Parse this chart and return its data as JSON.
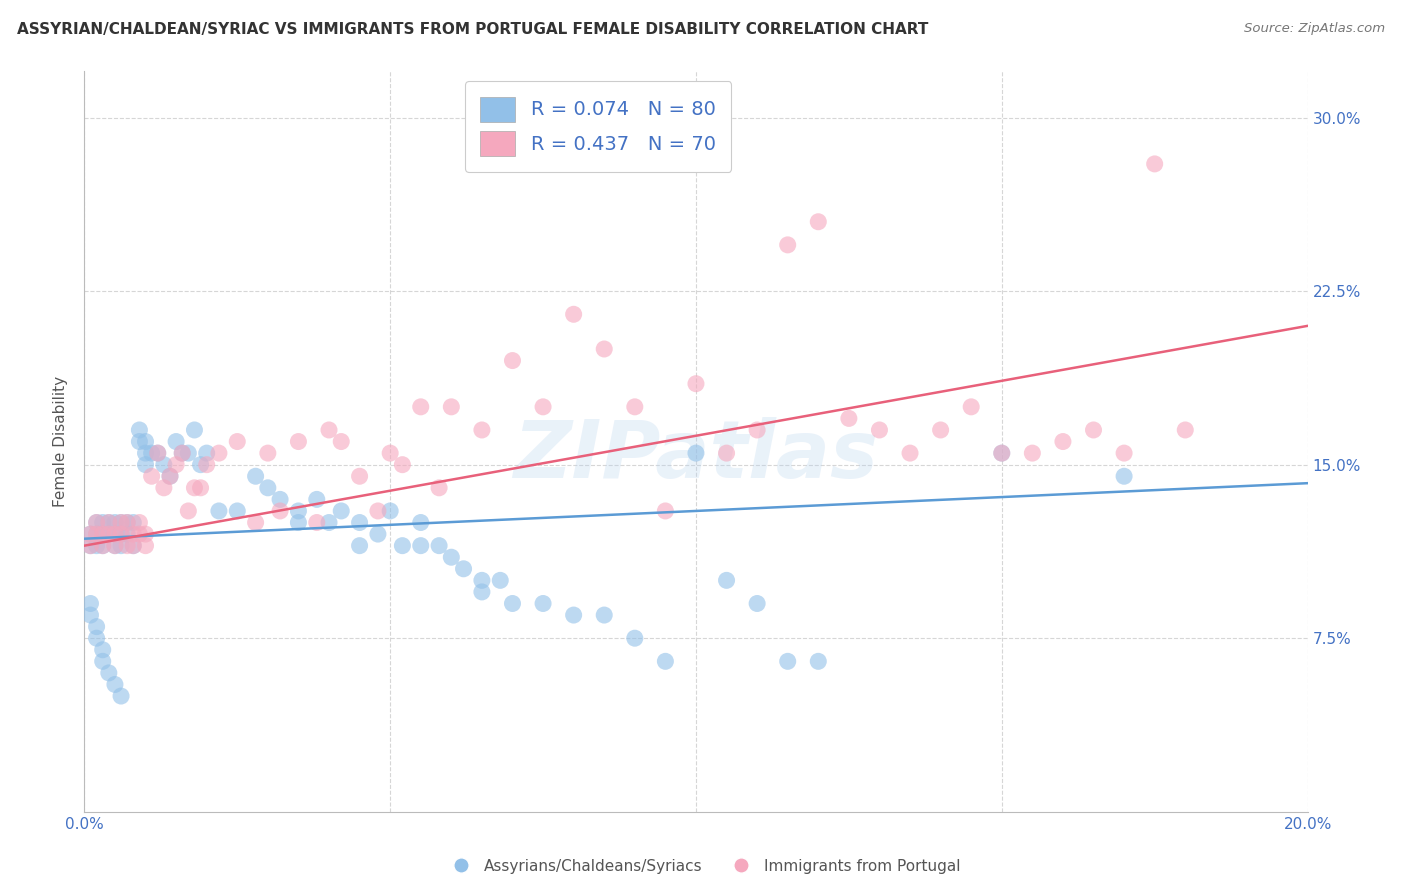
{
  "title": "ASSYRIAN/CHALDEAN/SYRIAC VS IMMIGRANTS FROM PORTUGAL FEMALE DISABILITY CORRELATION CHART",
  "source": "Source: ZipAtlas.com",
  "ylabel": "Female Disability",
  "xlim": [
    0.0,
    0.2
  ],
  "ylim": [
    0.0,
    0.32
  ],
  "yticks": [
    0.075,
    0.15,
    0.225,
    0.3
  ],
  "ytick_labels": [
    "7.5%",
    "15.0%",
    "22.5%",
    "30.0%"
  ],
  "xticks": [
    0.0,
    0.05,
    0.1,
    0.15,
    0.2
  ],
  "blue_R": 0.074,
  "blue_N": 80,
  "pink_R": 0.437,
  "pink_N": 70,
  "blue_color": "#92c0e8",
  "pink_color": "#f5a8be",
  "blue_line_color": "#5b9bd5",
  "pink_line_color": "#e8607a",
  "legend_text_color": "#4472c4",
  "watermark": "ZIPatlas",
  "blue_x": [
    0.001,
    0.001,
    0.002,
    0.002,
    0.002,
    0.003,
    0.003,
    0.003,
    0.004,
    0.004,
    0.005,
    0.005,
    0.005,
    0.006,
    0.006,
    0.006,
    0.007,
    0.007,
    0.008,
    0.008,
    0.009,
    0.009,
    0.01,
    0.01,
    0.01,
    0.011,
    0.012,
    0.013,
    0.014,
    0.015,
    0.016,
    0.017,
    0.018,
    0.019,
    0.02,
    0.022,
    0.025,
    0.028,
    0.03,
    0.032,
    0.035,
    0.035,
    0.038,
    0.04,
    0.042,
    0.045,
    0.045,
    0.048,
    0.05,
    0.052,
    0.055,
    0.055,
    0.058,
    0.06,
    0.062,
    0.065,
    0.065,
    0.068,
    0.07,
    0.075,
    0.08,
    0.085,
    0.09,
    0.095,
    0.1,
    0.105,
    0.11,
    0.115,
    0.12,
    0.15,
    0.001,
    0.001,
    0.002,
    0.002,
    0.003,
    0.003,
    0.004,
    0.005,
    0.006,
    0.17
  ],
  "blue_y": [
    0.12,
    0.115,
    0.125,
    0.12,
    0.115,
    0.125,
    0.12,
    0.115,
    0.125,
    0.12,
    0.125,
    0.12,
    0.115,
    0.125,
    0.12,
    0.115,
    0.125,
    0.12,
    0.125,
    0.115,
    0.165,
    0.16,
    0.16,
    0.155,
    0.15,
    0.155,
    0.155,
    0.15,
    0.145,
    0.16,
    0.155,
    0.155,
    0.165,
    0.15,
    0.155,
    0.13,
    0.13,
    0.145,
    0.14,
    0.135,
    0.13,
    0.125,
    0.135,
    0.125,
    0.13,
    0.115,
    0.125,
    0.12,
    0.13,
    0.115,
    0.125,
    0.115,
    0.115,
    0.11,
    0.105,
    0.1,
    0.095,
    0.1,
    0.09,
    0.09,
    0.085,
    0.085,
    0.075,
    0.065,
    0.155,
    0.1,
    0.09,
    0.065,
    0.065,
    0.155,
    0.09,
    0.085,
    0.08,
    0.075,
    0.07,
    0.065,
    0.06,
    0.055,
    0.05,
    0.145
  ],
  "pink_x": [
    0.001,
    0.001,
    0.002,
    0.002,
    0.003,
    0.003,
    0.004,
    0.004,
    0.005,
    0.005,
    0.006,
    0.006,
    0.007,
    0.007,
    0.008,
    0.008,
    0.009,
    0.009,
    0.01,
    0.01,
    0.011,
    0.012,
    0.013,
    0.014,
    0.015,
    0.016,
    0.017,
    0.018,
    0.019,
    0.02,
    0.022,
    0.025,
    0.028,
    0.03,
    0.032,
    0.035,
    0.038,
    0.04,
    0.042,
    0.045,
    0.048,
    0.05,
    0.052,
    0.055,
    0.058,
    0.06,
    0.065,
    0.07,
    0.075,
    0.08,
    0.085,
    0.09,
    0.095,
    0.1,
    0.105,
    0.11,
    0.115,
    0.12,
    0.125,
    0.13,
    0.135,
    0.14,
    0.145,
    0.15,
    0.155,
    0.16,
    0.165,
    0.17,
    0.175,
    0.18
  ],
  "pink_y": [
    0.12,
    0.115,
    0.125,
    0.12,
    0.12,
    0.115,
    0.125,
    0.12,
    0.12,
    0.115,
    0.125,
    0.12,
    0.115,
    0.125,
    0.12,
    0.115,
    0.125,
    0.12,
    0.12,
    0.115,
    0.145,
    0.155,
    0.14,
    0.145,
    0.15,
    0.155,
    0.13,
    0.14,
    0.14,
    0.15,
    0.155,
    0.16,
    0.125,
    0.155,
    0.13,
    0.16,
    0.125,
    0.165,
    0.16,
    0.145,
    0.13,
    0.155,
    0.15,
    0.175,
    0.14,
    0.175,
    0.165,
    0.195,
    0.175,
    0.215,
    0.2,
    0.175,
    0.13,
    0.185,
    0.155,
    0.165,
    0.245,
    0.255,
    0.17,
    0.165,
    0.155,
    0.165,
    0.175,
    0.155,
    0.155,
    0.16,
    0.165,
    0.155,
    0.28,
    0.165
  ],
  "blue_line_x": [
    0.0,
    0.2
  ],
  "blue_line_y": [
    0.118,
    0.142
  ],
  "pink_line_x": [
    0.0,
    0.2
  ],
  "pink_line_y": [
    0.115,
    0.21
  ]
}
